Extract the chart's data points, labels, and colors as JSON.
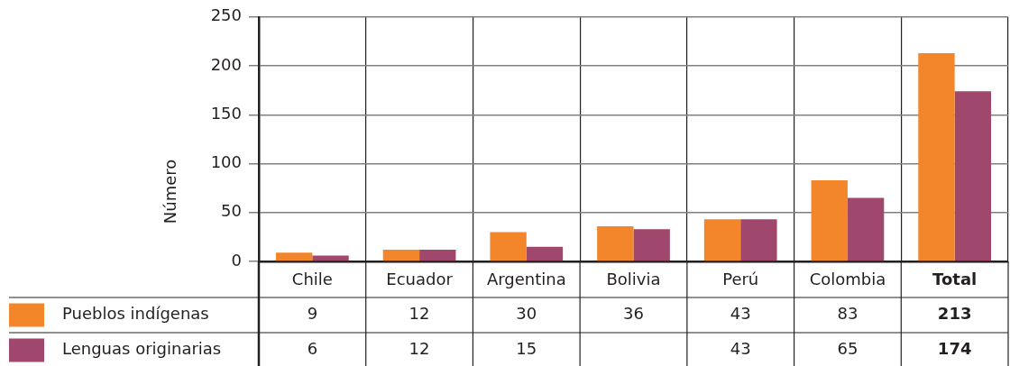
{
  "chart_data": {
    "type": "bar",
    "ylabel": "Número",
    "categories": [
      "Chile",
      "Ecuador",
      "Argentina",
      "Bolivia",
      "Perú",
      "Colombia",
      "Total"
    ],
    "series": [
      {
        "name": "Pueblos indígenas",
        "color": "#f3852a",
        "values": [
          9,
          12,
          30,
          36,
          43,
          83,
          213
        ],
        "value_labels": [
          "9",
          "12",
          "30",
          "36",
          "43",
          "83",
          "213"
        ]
      },
      {
        "name": "Lenguas originarias",
        "color": "#a0476d",
        "values": [
          6,
          12,
          15,
          33,
          43,
          65,
          174
        ],
        "value_labels": [
          "6",
          "12",
          "15",
          null,
          "43",
          "65",
          "174"
        ]
      }
    ],
    "ylim": [
      0,
      250
    ],
    "yticks": [
      0,
      50,
      100,
      150,
      200,
      250
    ],
    "grid": true,
    "legend": "bottom left"
  }
}
